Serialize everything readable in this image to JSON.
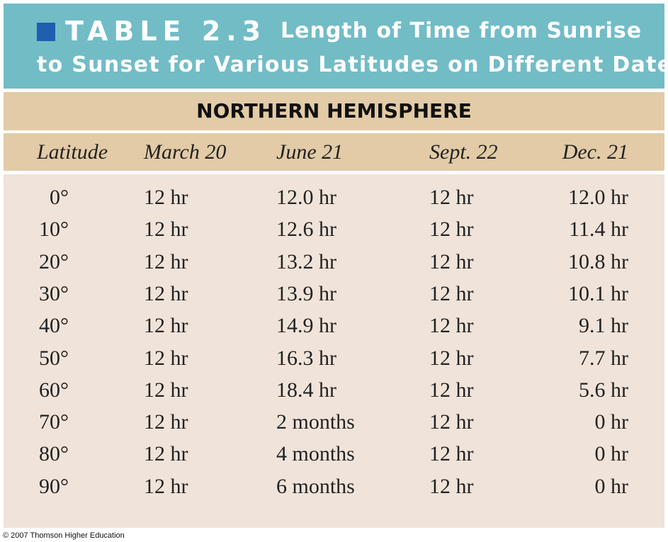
{
  "header": {
    "label": "TABLE 2.3",
    "title_lines": [
      "Length of Time from Sunrise",
      "to Sunset for Various Latitudes on Different Dates"
    ]
  },
  "table": {
    "section": "NORTHERN HEMISPHERE",
    "columns": [
      "Latitude",
      "March 20",
      "June 21",
      "Sept. 22",
      "Dec. 21"
    ],
    "rows": [
      [
        "0°",
        "12 hr",
        "12.0 hr",
        "12 hr",
        "12.0 hr"
      ],
      [
        "10°",
        "12 hr",
        "12.6 hr",
        "12 hr",
        "11.4 hr"
      ],
      [
        "20°",
        "12 hr",
        "13.2 hr",
        "12 hr",
        "10.8 hr"
      ],
      [
        "30°",
        "12 hr",
        "13.9 hr",
        "12 hr",
        "10.1 hr"
      ],
      [
        "40°",
        "12 hr",
        "14.9 hr",
        "12 hr",
        "9.1 hr"
      ],
      [
        "50°",
        "12 hr",
        "16.3 hr",
        "12 hr",
        "7.7 hr"
      ],
      [
        "60°",
        "12 hr",
        "18.4 hr",
        "12 hr",
        "5.6 hr"
      ],
      [
        "70°",
        "12 hr",
        "2 months",
        "12 hr",
        "0 hr"
      ],
      [
        "80°",
        "12 hr",
        "4 months",
        "12 hr",
        "0 hr"
      ],
      [
        "90°",
        "12 hr",
        "6 months",
        "12 hr",
        "0 hr"
      ]
    ]
  },
  "footer": "© 2007 Thomson Higher Education"
}
